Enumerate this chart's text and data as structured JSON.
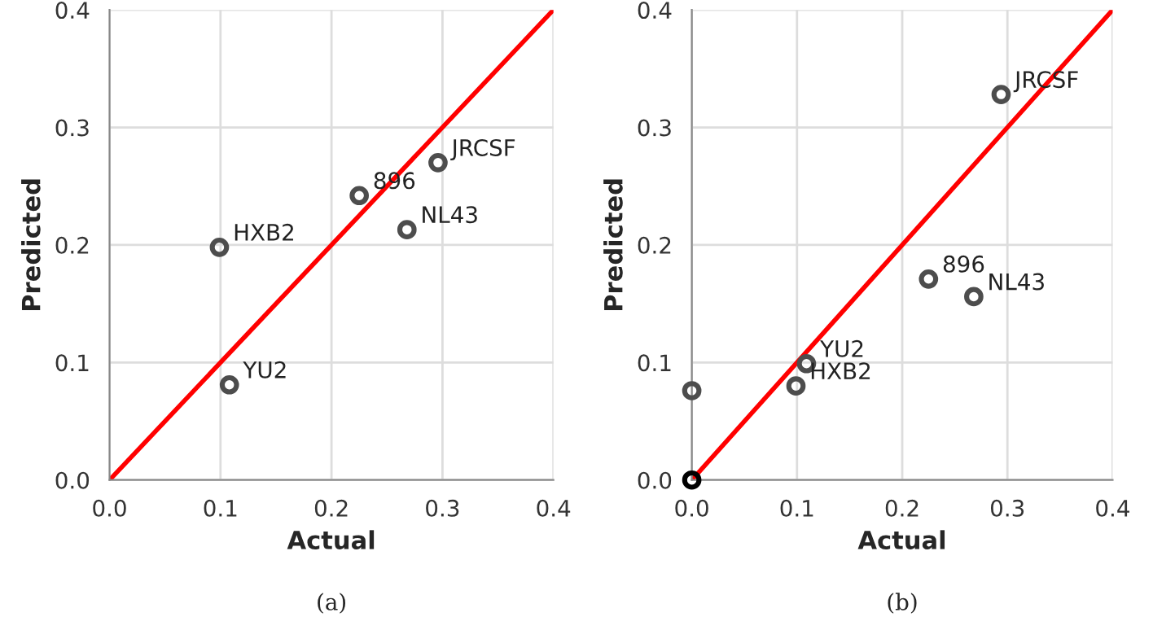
{
  "chart_data": [
    {
      "type": "scatter",
      "xlabel": "Actual",
      "ylabel": "Predicted",
      "xlim": [
        0,
        0.4
      ],
      "ylim": [
        0,
        0.4
      ],
      "xticks": [
        {
          "value": 0,
          "label": "0.0"
        },
        0.1,
        0.2,
        0.3,
        0.4
      ],
      "yticks": [
        {
          "value": 0,
          "label": "0.0"
        },
        0.1,
        0.2,
        0.3,
        0.4
      ],
      "grid": true,
      "series": [
        {
          "color": "#4d4d4d",
          "marker": "circle",
          "x": [
            0.099,
            0.108,
            0.225,
            0.268,
            0.296
          ],
          "values": [
            0.198,
            0.081,
            0.242,
            0.213,
            0.27
          ]
        },
        {
          "type": "line",
          "marker": "none",
          "color": "#ff0000",
          "x": [
            0,
            0.4
          ],
          "values": [
            0,
            0.4
          ]
        }
      ],
      "annotations": [
        {
          "text": "HXB2",
          "x": 0.099,
          "y": 0.198
        },
        {
          "text": "YU2",
          "x": 0.108,
          "y": 0.081
        },
        {
          "text": "896",
          "x": 0.225,
          "y": 0.242
        },
        {
          "text": "NL43",
          "x": 0.268,
          "y": 0.213
        },
        {
          "text": "JRCSF",
          "x": 0.296,
          "y": 0.27
        },
        "(a)"
      ]
    },
    {
      "type": "scatter",
      "xlabel": "Actual",
      "ylabel": "Predicted",
      "xlim": [
        0,
        0.4
      ],
      "ylim": [
        0,
        0.4
      ],
      "xticks": [
        {
          "value": 0,
          "label": "0.0"
        },
        0.1,
        0.2,
        0.3,
        0.4
      ],
      "yticks": [
        {
          "value": 0,
          "label": "0.0"
        },
        0.1,
        0.2,
        0.3,
        0.4
      ],
      "grid": true,
      "series": [
        {
          "color": "#4d4d4d",
          "marker": "circle",
          "x": [
            0.099,
            0.109,
            0.225,
            0.268,
            0.294,
            0.0
          ],
          "values": [
            0.08,
            0.099,
            0.171,
            0.156,
            0.328,
            0.076
          ]
        },
        {
          "color": "#000000",
          "marker": "circle",
          "x": [
            0.0
          ],
          "values": [
            0.0
          ]
        },
        {
          "type": "line",
          "marker": "none",
          "color": "#ff0000",
          "x": [
            0,
            0.4
          ],
          "values": [
            0,
            0.4
          ]
        }
      ],
      "annotations": [
        {
          "text": "HXB2",
          "x": 0.099,
          "y": 0.08
        },
        {
          "text": "YU2",
          "x": 0.109,
          "y": 0.099
        },
        {
          "text": "896",
          "x": 0.225,
          "y": 0.171
        },
        {
          "text": "NL43",
          "x": 0.268,
          "y": 0.156
        },
        {
          "text": "JRCSF",
          "x": 0.294,
          "y": 0.328
        },
        "(b)"
      ]
    }
  ]
}
